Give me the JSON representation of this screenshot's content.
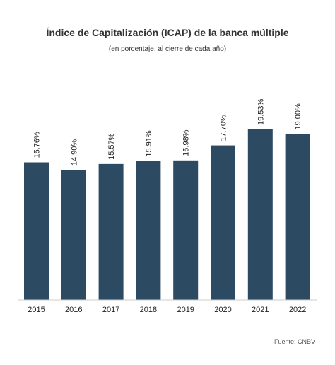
{
  "chart_data": {
    "type": "bar",
    "title": "Índice de Capitalización (ICAP) de la banca múltiple",
    "subtitle": "(en porcentaje, al cierre de cada año)",
    "categories": [
      "2015",
      "2016",
      "2017",
      "2018",
      "2019",
      "2020",
      "2021",
      "2022"
    ],
    "values": [
      15.76,
      14.9,
      15.57,
      15.91,
      15.98,
      17.7,
      19.53,
      19.0
    ],
    "data_labels": [
      "15.76%",
      "14.90%",
      "15.57%",
      "15.91%",
      "15.98%",
      "17.70%",
      "19.53%",
      "19.00%"
    ],
    "ylim": [
      0,
      19.53
    ],
    "xlabel": "",
    "ylabel": "",
    "grid": false,
    "legend": "none",
    "bar_color": "#2d4a63",
    "source": "Fuente: CNBV"
  }
}
